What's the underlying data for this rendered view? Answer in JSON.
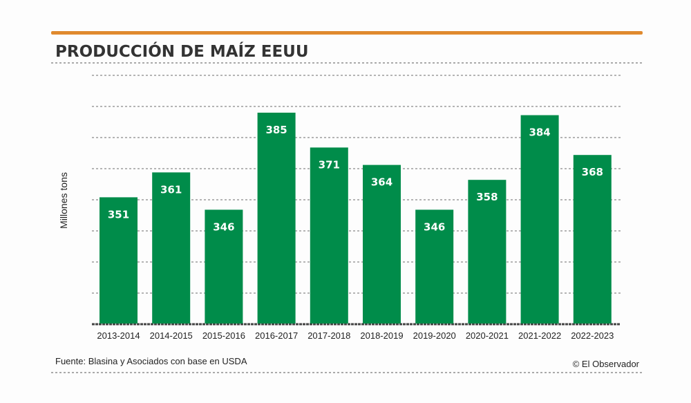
{
  "chart_data": {
    "type": "bar",
    "title": "PRODUCCIÓN DE MAÍZ EEUU",
    "xlabel": "",
    "ylabel": "Millones tons",
    "categories": [
      "2013-2014",
      "2014-2015",
      "2015-2016",
      "2016-2017",
      "2017-2018",
      "2018-2019",
      "2019-2020",
      "2020-2021",
      "2021-2022",
      "2022-2023"
    ],
    "values": [
      351,
      361,
      346,
      385,
      371,
      364,
      346,
      358,
      384,
      368
    ],
    "ylim": [
      300,
      400
    ],
    "grid": true,
    "data_labels": true,
    "colors": {
      "bar": "#008c4a",
      "accent": "#e08a2e",
      "title": "#333333"
    }
  },
  "footer": {
    "source": "Fuente: Blasina y Asociados con base en USDA",
    "credit": "© El Observador"
  }
}
